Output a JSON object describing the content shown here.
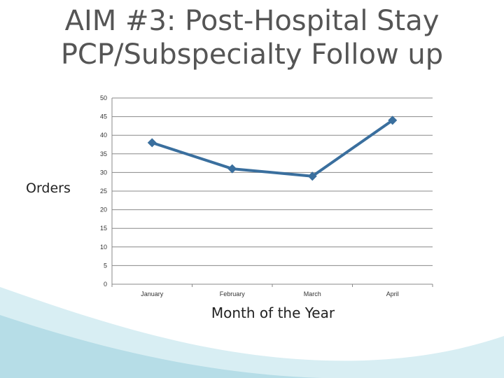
{
  "slide": {
    "title_line1": "AIM #3: Post-Hospital Stay",
    "title_line2": "PCP/Subspecialty Follow up"
  },
  "colors": {
    "series": "#3a6f9e",
    "title": "#555555",
    "grid": "#888888",
    "wave_light": "#d8eef3",
    "wave_mid": "#b6dde7"
  },
  "chart_data": {
    "type": "line",
    "categories": [
      "January",
      "February",
      "March",
      "April"
    ],
    "series": [
      {
        "values": [
          38,
          31,
          29,
          44
        ]
      }
    ],
    "ylabel": "Orders",
    "xlabel": "Month of the Year",
    "ylim": [
      0,
      50
    ],
    "yticks": [
      0,
      5,
      10,
      15,
      20,
      25,
      30,
      35,
      40,
      45,
      50
    ],
    "grid": true,
    "marker": "diamond"
  }
}
